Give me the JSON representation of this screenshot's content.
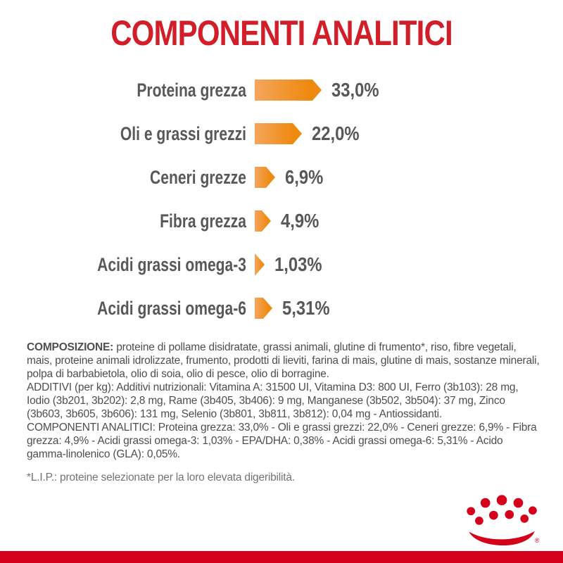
{
  "brand": {
    "logo": "royal-canin-crown",
    "registered_mark": "®",
    "red": "#D50019"
  },
  "header": {
    "title": "COMPONENTI ANALITICI",
    "title_color": "#D21E28"
  },
  "chart_data": {
    "type": "bar",
    "orientation": "horizontal",
    "title": "COMPONENTI ANALITICI",
    "unit": "percent",
    "categories": [
      "Proteina grezza",
      "Oli e grassi grezzi",
      "Ceneri grezze",
      "Fibra grezza",
      "Acidi grassi omega-3",
      "Acidi grassi omega-6"
    ],
    "values": [
      33.0,
      22.0,
      6.9,
      4.9,
      1.03,
      5.31
    ],
    "value_labels": [
      "33,0%",
      "22,0%",
      "6,9%",
      "4,9%",
      "1,03%",
      "5,31%"
    ],
    "bar_gradient": [
      "#F4A55D",
      "#EF8A10"
    ],
    "label_color": "#58585A",
    "legend": "none",
    "grid": "off"
  },
  "sections": {
    "composizione": {
      "label": "COMPOSIZIONE:",
      "text": " proteine di pollame disidratate, grassi animali, glutine di frumento*, riso, fibre vegetali, mais, proteine animali idrolizzate, frumento, prodotti di lieviti, farina di mais, glutine di mais, sostanze minerali, polpa di barbabietola, olio di soia, olio di pesce, olio di borragine."
    },
    "additivi": {
      "text": "ADDITIVI (per kg): Additivi nutrizionali: Vitamina A: 31500 UI, Vitamina D3: 800 UI, Ferro (3b103): 28 mg, Iodio (3b201, 3b202): 2,8 mg, Rame (3b405, 3b406): 9 mg, Manganese (3b502, 3b504): 37 mg, Zinco (3b603, 3b605, 3b606): 131 mg, Selenio (3b801, 3b811, 3b812): 0,04 mg - Antiossidanti."
    },
    "componenti_analitici": {
      "text": "COMPONENTI ANALITICI: Proteina grezza: 33,0% - Oli e grassi grezzi: 22,0% - Ceneri grezze: 6,9% - Fibra grezza: 4,9% - Acidi grassi omega-3: 1,03% - EPA/DHA: 0,38% - Acidi grassi omega-6: 5,31% - Acido gamma-linolenico (GLA): 0,05%."
    },
    "footnote": "*L.I.P.: proteine selezionate per la loro elevata digeribilità."
  }
}
